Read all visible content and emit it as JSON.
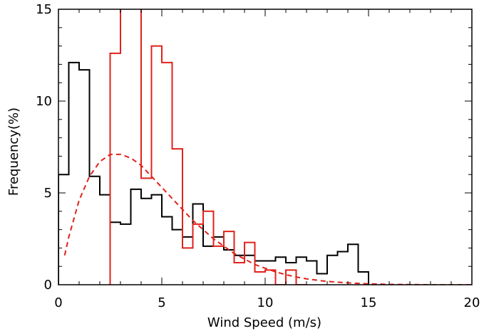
{
  "chart_data": {
    "type": "line",
    "title": "",
    "xlabel": "Wind Speed (m/s)",
    "ylabel": "Frequency(%)",
    "xlim": [
      0,
      20
    ],
    "ylim": [
      0,
      15
    ],
    "x_ticks": [
      0,
      5,
      10,
      15,
      20
    ],
    "y_ticks": [
      0,
      5,
      10,
      15
    ],
    "x_tick_labels": [
      "0",
      "5",
      "10",
      "15",
      "20"
    ],
    "y_tick_labels": [
      "0",
      "5",
      "10",
      "15"
    ],
    "grid": false,
    "legend": "none",
    "series": [
      {
        "style": "histogram-step",
        "color": "#000000",
        "bin_width": 0.5,
        "bin_starts": [
          0,
          0.5,
          1,
          1.5,
          2,
          2.5,
          3,
          3.5,
          4,
          4.5,
          5,
          5.5,
          6,
          6.5,
          7,
          7.5,
          8,
          8.5,
          9,
          9.5,
          10,
          10.5,
          11,
          11.5,
          12,
          12.5,
          13,
          13.5,
          14,
          14.5
        ],
        "values": [
          6.0,
          12.1,
          11.7,
          5.9,
          4.9,
          3.4,
          3.3,
          5.2,
          4.7,
          4.9,
          3.7,
          3.0,
          2.6,
          4.4,
          2.1,
          2.6,
          1.9,
          1.6,
          1.6,
          1.3,
          1.3,
          1.5,
          1.2,
          1.5,
          1.3,
          0.6,
          1.6,
          1.8,
          2.2,
          0.7
        ]
      },
      {
        "style": "histogram-step",
        "color": "#e0221b",
        "bin_width": 0.5,
        "bin_starts": [
          2.5,
          3.0,
          3.5,
          4.0,
          4.5,
          5.0,
          5.5,
          6.0,
          6.5,
          7.0,
          7.5,
          8.0,
          8.5,
          9.0,
          9.5,
          10.0,
          10.5,
          11.0,
          11.5
        ],
        "values": [
          12.6,
          15.5,
          15.5,
          5.8,
          13.0,
          12.1,
          7.4,
          2.0,
          3.3,
          4.0,
          2.1,
          2.9,
          1.2,
          2.3,
          0.7,
          0.8,
          0.0,
          0.8,
          0.0
        ]
      },
      {
        "style": "dashed-line",
        "color": "#e0221b",
        "x": [
          0.3,
          0.5,
          1.0,
          1.5,
          2.0,
          2.5,
          3.0,
          3.5,
          4.0,
          4.5,
          5.0,
          5.5,
          6.0,
          6.5,
          7.0,
          7.5,
          8.0,
          8.5,
          9.0,
          9.5,
          10.0,
          10.5,
          11.0,
          11.5,
          12.0,
          13.0,
          14.0,
          15.0,
          16.0,
          17.0,
          18.0,
          19.0,
          20.0
        ],
        "y": [
          1.6,
          2.6,
          4.6,
          5.9,
          6.7,
          7.1,
          7.1,
          6.9,
          6.5,
          5.9,
          5.3,
          4.7,
          4.1,
          3.5,
          3.0,
          2.5,
          2.1,
          1.7,
          1.4,
          1.1,
          0.9,
          0.7,
          0.55,
          0.42,
          0.32,
          0.18,
          0.1,
          0.05,
          0.02,
          0.01,
          0.0,
          0.0,
          0.0
        ]
      }
    ]
  }
}
